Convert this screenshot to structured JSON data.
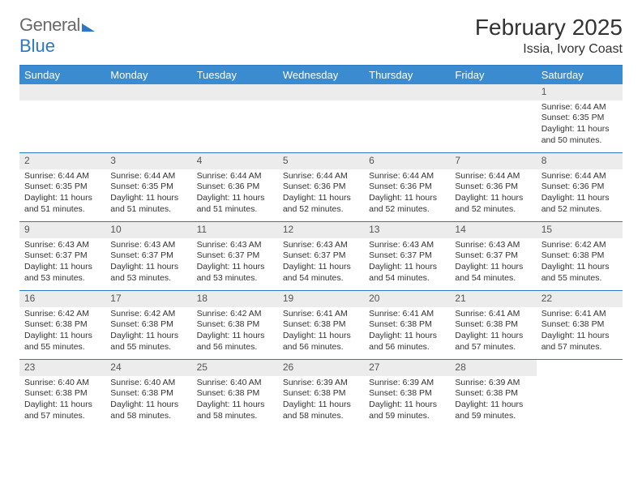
{
  "brand": {
    "word1": "General",
    "word2": "Blue"
  },
  "title": "February 2025",
  "location": "Issia, Ivory Coast",
  "colors": {
    "header_bg": "#3a8bd0",
    "header_text": "#ffffff",
    "rule": "#2b78c6",
    "daynum_bg": "#ececec",
    "text": "#333333"
  },
  "daysOfWeek": [
    "Sunday",
    "Monday",
    "Tuesday",
    "Wednesday",
    "Thursday",
    "Friday",
    "Saturday"
  ],
  "startDayIndex": 6,
  "daysInMonth": 28,
  "entries": {
    "1": {
      "sunrise": "6:44 AM",
      "sunset": "6:35 PM",
      "daylight": "11 hours and 50 minutes."
    },
    "2": {
      "sunrise": "6:44 AM",
      "sunset": "6:35 PM",
      "daylight": "11 hours and 51 minutes."
    },
    "3": {
      "sunrise": "6:44 AM",
      "sunset": "6:35 PM",
      "daylight": "11 hours and 51 minutes."
    },
    "4": {
      "sunrise": "6:44 AM",
      "sunset": "6:36 PM",
      "daylight": "11 hours and 51 minutes."
    },
    "5": {
      "sunrise": "6:44 AM",
      "sunset": "6:36 PM",
      "daylight": "11 hours and 52 minutes."
    },
    "6": {
      "sunrise": "6:44 AM",
      "sunset": "6:36 PM",
      "daylight": "11 hours and 52 minutes."
    },
    "7": {
      "sunrise": "6:44 AM",
      "sunset": "6:36 PM",
      "daylight": "11 hours and 52 minutes."
    },
    "8": {
      "sunrise": "6:44 AM",
      "sunset": "6:36 PM",
      "daylight": "11 hours and 52 minutes."
    },
    "9": {
      "sunrise": "6:43 AM",
      "sunset": "6:37 PM",
      "daylight": "11 hours and 53 minutes."
    },
    "10": {
      "sunrise": "6:43 AM",
      "sunset": "6:37 PM",
      "daylight": "11 hours and 53 minutes."
    },
    "11": {
      "sunrise": "6:43 AM",
      "sunset": "6:37 PM",
      "daylight": "11 hours and 53 minutes."
    },
    "12": {
      "sunrise": "6:43 AM",
      "sunset": "6:37 PM",
      "daylight": "11 hours and 54 minutes."
    },
    "13": {
      "sunrise": "6:43 AM",
      "sunset": "6:37 PM",
      "daylight": "11 hours and 54 minutes."
    },
    "14": {
      "sunrise": "6:43 AM",
      "sunset": "6:37 PM",
      "daylight": "11 hours and 54 minutes."
    },
    "15": {
      "sunrise": "6:42 AM",
      "sunset": "6:38 PM",
      "daylight": "11 hours and 55 minutes."
    },
    "16": {
      "sunrise": "6:42 AM",
      "sunset": "6:38 PM",
      "daylight": "11 hours and 55 minutes."
    },
    "17": {
      "sunrise": "6:42 AM",
      "sunset": "6:38 PM",
      "daylight": "11 hours and 55 minutes."
    },
    "18": {
      "sunrise": "6:42 AM",
      "sunset": "6:38 PM",
      "daylight": "11 hours and 56 minutes."
    },
    "19": {
      "sunrise": "6:41 AM",
      "sunset": "6:38 PM",
      "daylight": "11 hours and 56 minutes."
    },
    "20": {
      "sunrise": "6:41 AM",
      "sunset": "6:38 PM",
      "daylight": "11 hours and 56 minutes."
    },
    "21": {
      "sunrise": "6:41 AM",
      "sunset": "6:38 PM",
      "daylight": "11 hours and 57 minutes."
    },
    "22": {
      "sunrise": "6:41 AM",
      "sunset": "6:38 PM",
      "daylight": "11 hours and 57 minutes."
    },
    "23": {
      "sunrise": "6:40 AM",
      "sunset": "6:38 PM",
      "daylight": "11 hours and 57 minutes."
    },
    "24": {
      "sunrise": "6:40 AM",
      "sunset": "6:38 PM",
      "daylight": "11 hours and 58 minutes."
    },
    "25": {
      "sunrise": "6:40 AM",
      "sunset": "6:38 PM",
      "daylight": "11 hours and 58 minutes."
    },
    "26": {
      "sunrise": "6:39 AM",
      "sunset": "6:38 PM",
      "daylight": "11 hours and 58 minutes."
    },
    "27": {
      "sunrise": "6:39 AM",
      "sunset": "6:38 PM",
      "daylight": "11 hours and 59 minutes."
    },
    "28": {
      "sunrise": "6:39 AM",
      "sunset": "6:38 PM",
      "daylight": "11 hours and 59 minutes."
    }
  },
  "labels": {
    "sunrise": "Sunrise:",
    "sunset": "Sunset:",
    "daylight": "Daylight:"
  }
}
